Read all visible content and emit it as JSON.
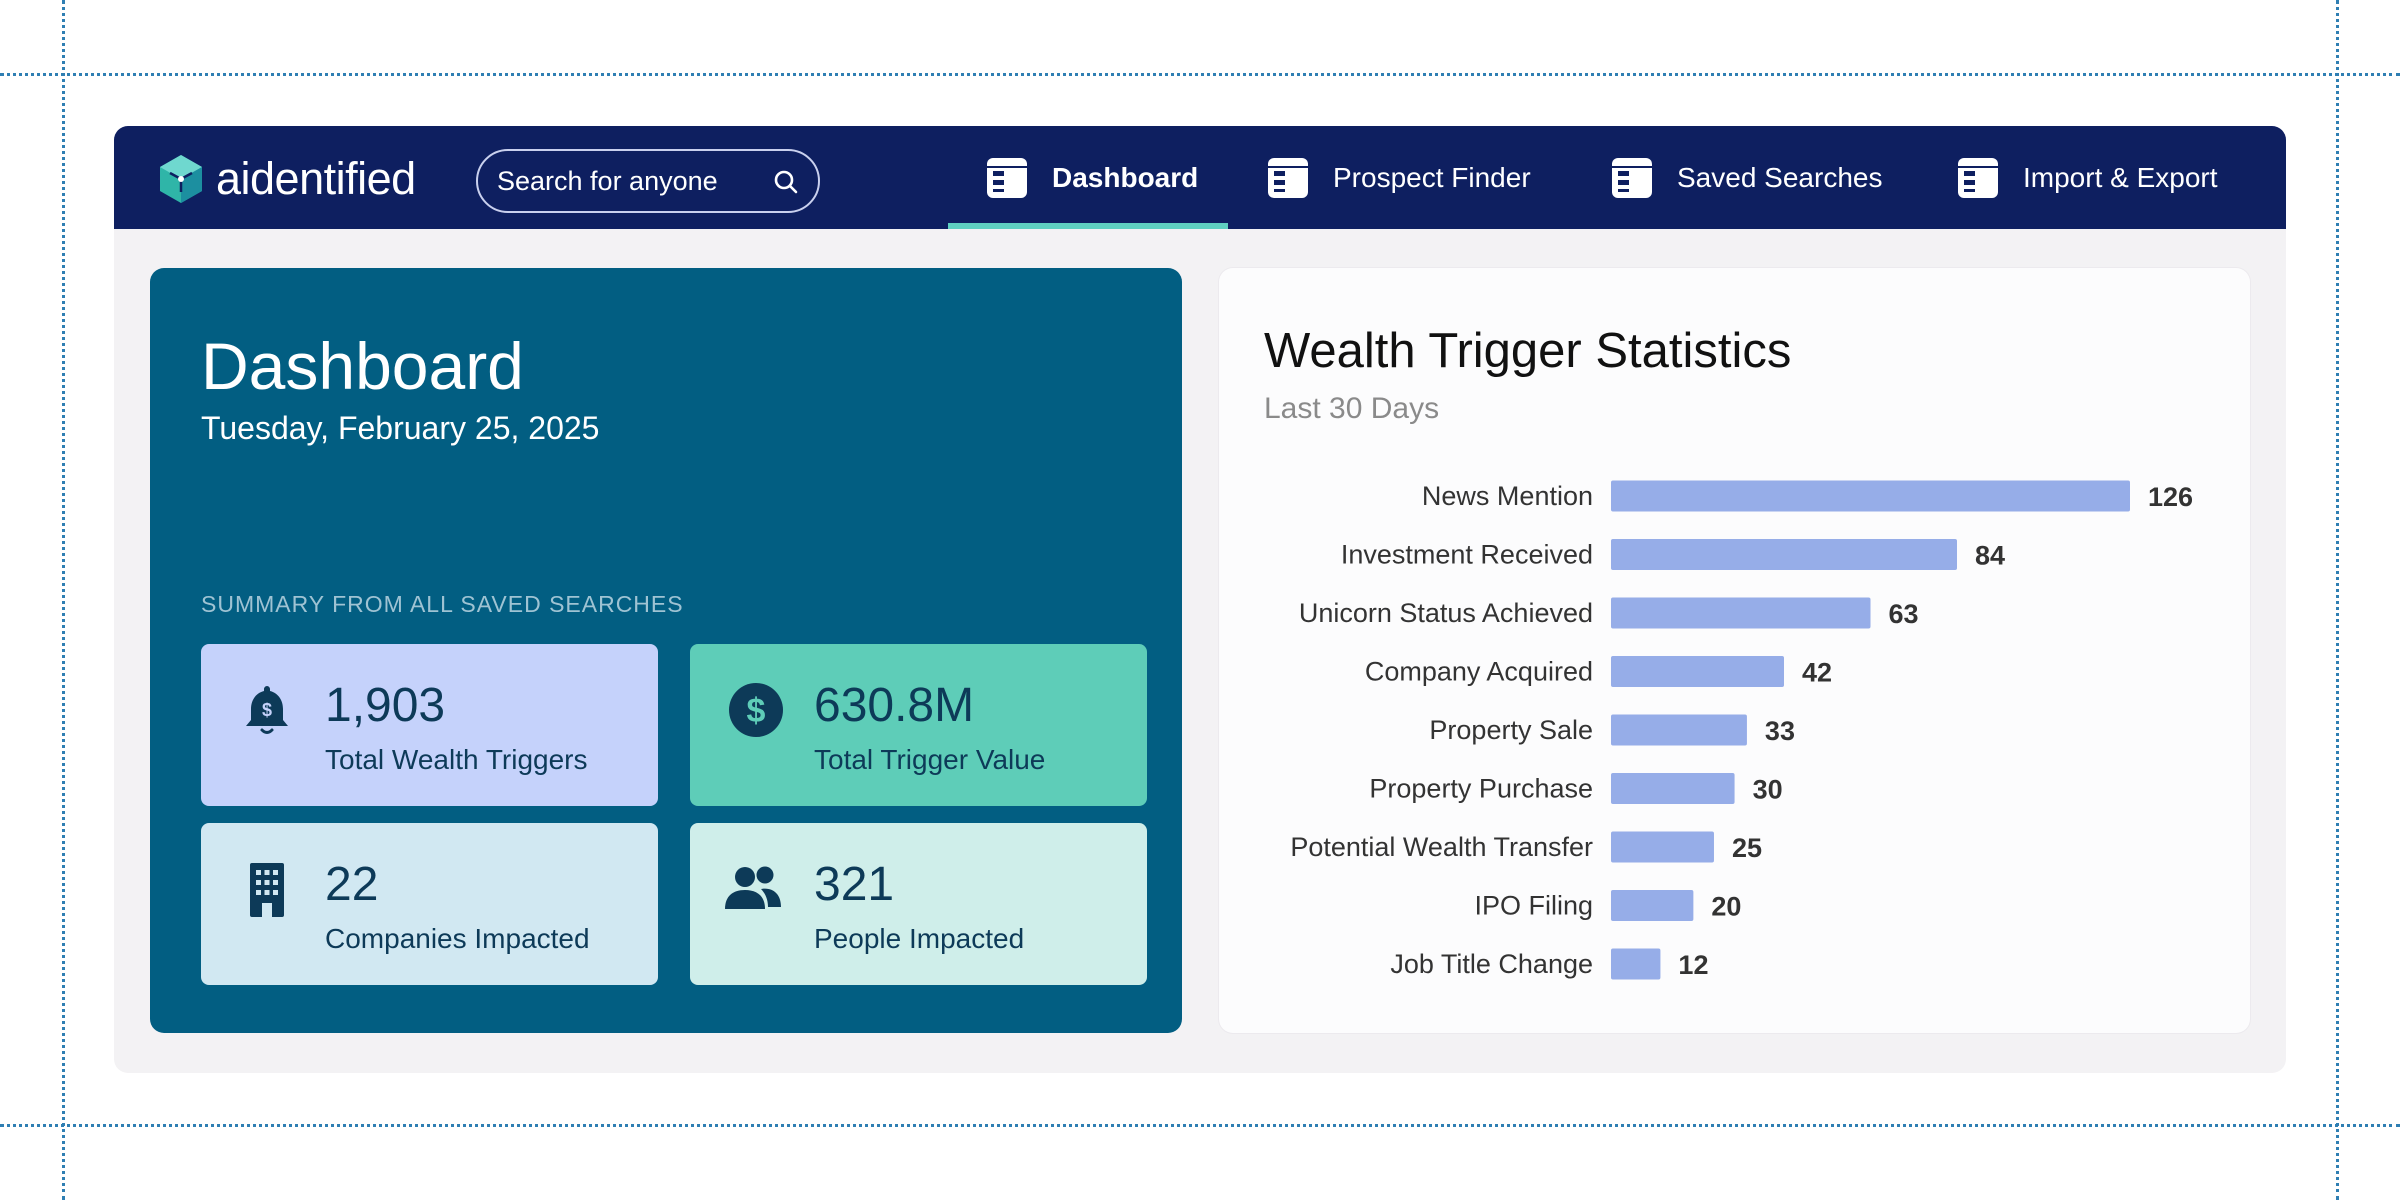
{
  "app": {
    "brand": "aidentified",
    "search": {
      "placeholder": "Search for anyone",
      "value": ""
    },
    "nav": [
      {
        "label": "Dashboard",
        "active": true
      },
      {
        "label": "Prospect Finder",
        "active": false
      },
      {
        "label": "Saved Searches",
        "active": false
      },
      {
        "label": "Import & Export",
        "active": false
      }
    ]
  },
  "dashboard": {
    "title": "Dashboard",
    "date": "Tuesday, February 25, 2025",
    "summary_label": "SUMMARY FROM ALL SAVED SEARCHES",
    "stats": [
      {
        "value": "1,903",
        "label": "Total Wealth Triggers",
        "icon": "bell-dollar-icon"
      },
      {
        "value": "630.8M",
        "label": "Total Trigger Value",
        "icon": "dollar-circle-icon"
      },
      {
        "value": "22",
        "label": "Companies Impacted",
        "icon": "building-icon"
      },
      {
        "value": "321",
        "label": "People Impacted",
        "icon": "people-icon"
      }
    ]
  },
  "colors": {
    "topbar": "#0e1f60",
    "nav_underline": "#5fd0c1",
    "dashboard_card": "#025e82",
    "stat_triggers": "#c5d2fb",
    "stat_value": "#5ecdb8",
    "stat_companies": "#d1e8f2",
    "stat_people": "#cfeeea",
    "bar": "#96ade8"
  },
  "chart_data": {
    "type": "bar",
    "orientation": "horizontal",
    "title": "Wealth Trigger Statistics",
    "subtitle": "Last 30 Days",
    "categories": [
      "News Mention",
      "Investment Received",
      "Unicorn Status Achieved",
      "Company Acquired",
      "Property Sale",
      "Property Purchase",
      "Potential Wealth Transfer",
      "IPO Filing",
      "Job Title Change"
    ],
    "values": [
      126,
      84,
      63,
      42,
      33,
      30,
      25,
      20,
      12
    ],
    "xlim": [
      0,
      126
    ],
    "grid": false,
    "data_labels": true
  }
}
